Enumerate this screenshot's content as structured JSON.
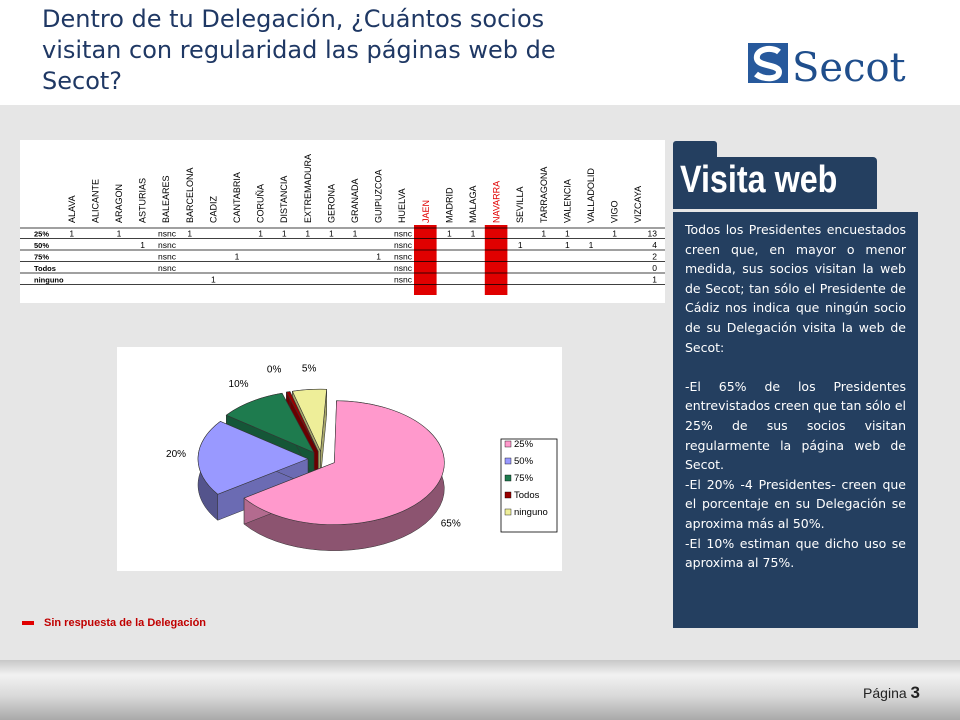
{
  "slide": {
    "title": "Dentro de tu Delegación, ¿Cuántos socios visitan con regularidad las páginas web de Secot?",
    "logo_text": "Secot",
    "footer_label": "Página",
    "page_number": "3",
    "side_title": "Visita web",
    "paragraphs": [
      "Todos los Presidentes encuestados creen que, en mayor o menor medida, sus socios visitan la web de Secot; tan sólo el Presidente de Cádiz nos indica que ningún socio de su Delegación visita la web de Secot:",
      "-El 65% de los Presidentes entrevistados creen que tan sólo el 25% de sus socios visitan regularmente la página web de Secot.",
      "-El 20% -4 Presidentes- creen que el porcentaje en su Delegación se aproxima más al 50%.",
      "-El 10% estiman que dicho uso se aproxima al 75%."
    ],
    "note": "Sin respuesta  de la Delegación"
  },
  "colors": {
    "title": "#1f3864",
    "panel": "#243f60",
    "no_response": "#e00000",
    "highlight_text": "#e00000"
  },
  "chart_data": [
    {
      "type": "table",
      "columns": [
        "ALAVA",
        "ALICANTE",
        "ARAGON",
        "ASTURIAS",
        "BALEARES",
        "BARCELONA",
        "CADIZ",
        "CANTABRIA",
        "CORUÑA",
        "DISTANCIA",
        "EXTREMADURA",
        "GERONA",
        "GRANADA",
        "GUIPUZCOA",
        "HUELVA",
        "JAEN",
        "MADRID",
        "MALAGA",
        "NAVARRA",
        "SEVILLA",
        "TARRAGONA",
        "VALENCIA",
        "VALLADOLID",
        "VIGO",
        "VIZCAYA"
      ],
      "highlighted_columns": [
        "JAEN",
        "NAVARRA"
      ],
      "rows": [
        {
          "label": "25%",
          "cells": [
            "1",
            "",
            "1",
            "",
            "nsnc",
            "1",
            "",
            "",
            "1",
            "1",
            "1",
            "1",
            "1",
            "",
            "nsnc",
            "",
            "1",
            "1",
            "",
            "",
            "1",
            "1",
            "",
            "1",
            ""
          ],
          "total": "13"
        },
        {
          "label": "50%",
          "cells": [
            "",
            "",
            "",
            "1",
            "nsnc",
            "",
            "",
            "",
            "",
            "",
            "",
            "",
            "",
            "",
            "nsnc",
            "",
            "",
            "",
            "",
            "1",
            "",
            "1",
            "1",
            "",
            ""
          ],
          "total": "4"
        },
        {
          "label": "75%",
          "cells": [
            "",
            "",
            "",
            "",
            "nsnc",
            "",
            "",
            "1",
            "",
            "",
            "",
            "",
            "",
            "1",
            "nsnc",
            "",
            "",
            "",
            "",
            "",
            "",
            "",
            "",
            "",
            ""
          ],
          "total": "2"
        },
        {
          "label": "Todos",
          "cells": [
            "",
            "",
            "",
            "",
            "nsnc",
            "",
            "",
            "",
            "",
            "",
            "",
            "",
            "",
            "",
            "nsnc",
            "",
            "",
            "",
            "",
            "",
            "",
            "",
            "",
            "",
            ""
          ],
          "total": "0"
        },
        {
          "label": "ninguno",
          "cells": [
            "",
            "",
            "",
            "",
            "",
            "",
            "1",
            "",
            "",
            "",
            "",
            "",
            "",
            "",
            "nsnc",
            "",
            "",
            "",
            "",
            "",
            "",
            "",
            "",
            "",
            ""
          ],
          "total": "1"
        }
      ]
    },
    {
      "type": "pie",
      "style": "3d-exploded",
      "legend_position": "right",
      "slices": [
        {
          "name": "25%",
          "value": 65,
          "label": "65%",
          "color": "#ff99cc"
        },
        {
          "name": "50%",
          "value": 20,
          "label": "20%",
          "color": "#9999ff"
        },
        {
          "name": "75%",
          "value": 10,
          "label": "10%",
          "color": "#1e7b4e"
        },
        {
          "name": "Todos",
          "value": 0,
          "label": "0%",
          "color": "#990000"
        },
        {
          "name": "ninguno",
          "value": 5,
          "label": "5%",
          "color": "#eeee99"
        }
      ]
    }
  ]
}
